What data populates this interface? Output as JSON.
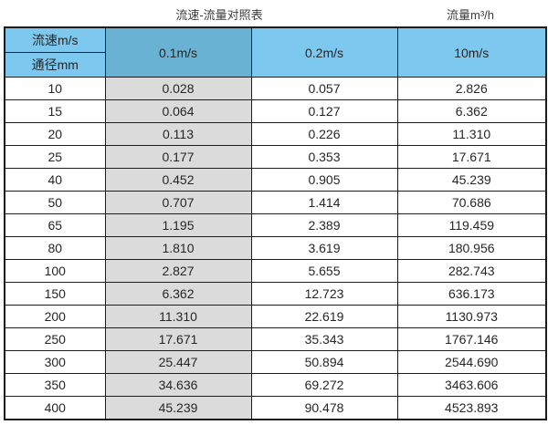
{
  "page": {
    "title": "流速-流量对照表",
    "unit_label": "流量m³/h"
  },
  "colors": {
    "header_light_blue": "#7dc8ee",
    "header_dark_blue": "#69b2d3",
    "column_gray": "#dbdbdb",
    "border": "#1c1c1c"
  },
  "chart_data": {
    "type": "table",
    "title": "流速-流量对照表",
    "unit": "流量m³/h",
    "column_header": "流速m/s",
    "row_header": "通径mm",
    "columns": [
      "0.1m/s",
      "0.2m/s",
      "10m/s"
    ],
    "rows": [
      {
        "diameter_mm": 10,
        "values": [
          0.028,
          0.057,
          2.826
        ]
      },
      {
        "diameter_mm": 15,
        "values": [
          0.064,
          0.127,
          6.362
        ]
      },
      {
        "diameter_mm": 20,
        "values": [
          0.113,
          0.226,
          11.31
        ]
      },
      {
        "diameter_mm": 25,
        "values": [
          0.177,
          0.353,
          17.671
        ]
      },
      {
        "diameter_mm": 40,
        "values": [
          0.452,
          0.905,
          45.239
        ]
      },
      {
        "diameter_mm": 50,
        "values": [
          0.707,
          1.414,
          70.686
        ]
      },
      {
        "diameter_mm": 65,
        "values": [
          1.195,
          2.389,
          119.459
        ]
      },
      {
        "diameter_mm": 80,
        "values": [
          1.81,
          3.619,
          180.956
        ]
      },
      {
        "diameter_mm": 100,
        "values": [
          2.827,
          5.655,
          282.743
        ]
      },
      {
        "diameter_mm": 150,
        "values": [
          6.362,
          12.723,
          636.173
        ]
      },
      {
        "diameter_mm": 200,
        "values": [
          11.31,
          22.619,
          1130.973
        ]
      },
      {
        "diameter_mm": 250,
        "values": [
          17.671,
          35.343,
          1767.146
        ]
      },
      {
        "diameter_mm": 300,
        "values": [
          25.447,
          50.894,
          2544.69
        ]
      },
      {
        "diameter_mm": 350,
        "values": [
          34.636,
          69.272,
          3463.606
        ]
      },
      {
        "diameter_mm": 400,
        "values": [
          45.239,
          90.478,
          4523.893
        ]
      }
    ]
  }
}
